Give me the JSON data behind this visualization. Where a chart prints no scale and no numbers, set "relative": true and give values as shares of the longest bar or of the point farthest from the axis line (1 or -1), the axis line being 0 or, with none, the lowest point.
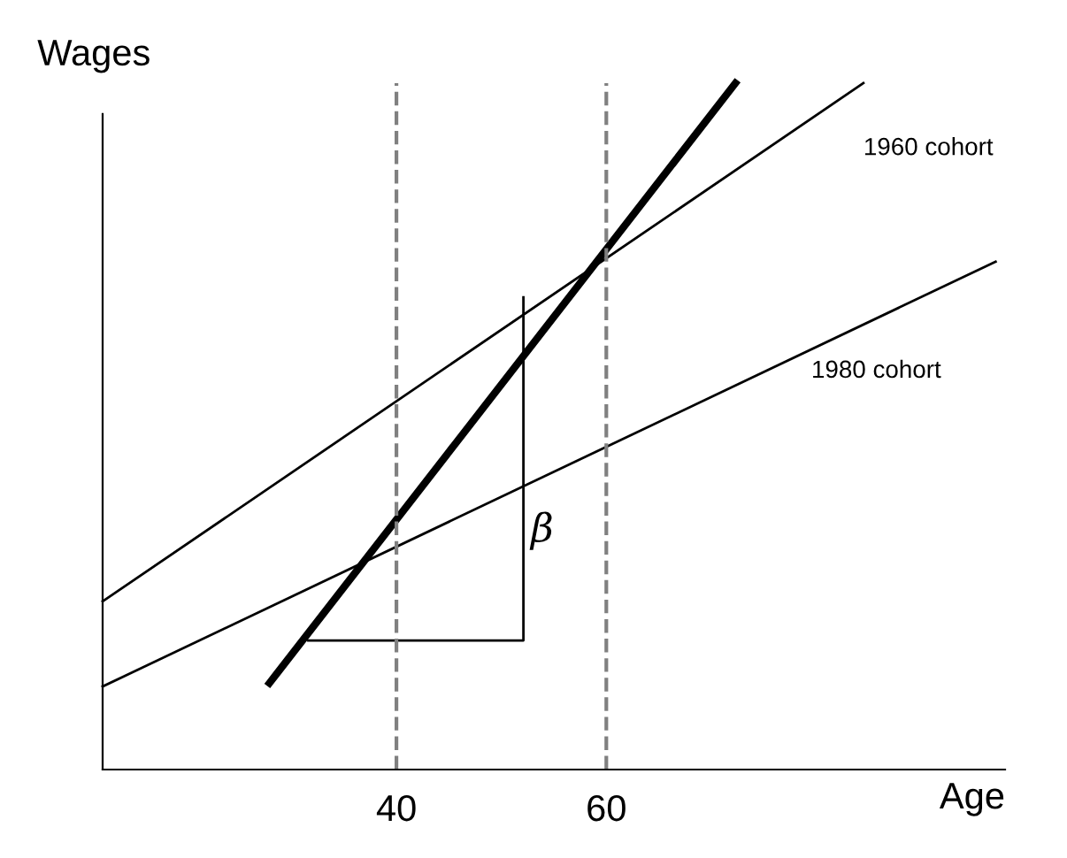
{
  "chart_data": {
    "type": "line",
    "relative": true,
    "xlabel": "Age",
    "ylabel": "Wages",
    "xlim": [
      12,
      98
    ],
    "xticks": [
      40,
      60
    ],
    "grid": false,
    "legend": false,
    "marker": "none",
    "line_style": "solid",
    "series": [
      {
        "name": "1960 cohort",
        "color": "#000000",
        "x": [
          12,
          84.5
        ],
        "values": [
          0.245,
          1.0
        ]
      },
      {
        "name": "1980 cohort",
        "color": "#000000",
        "x": [
          12,
          97.1
        ],
        "values": [
          0.121,
          0.74
        ]
      },
      {
        "color": "#000000",
        "x": [
          27.9,
          72.3
        ],
        "values": [
          0.126,
          1.0
        ]
      },
      {
        "color": "#000000",
        "x": [
          31.6,
          52.1,
          52.1
        ],
        "values": [
          0.188,
          0.188,
          0.688
        ]
      }
    ],
    "ref_lines": [
      {
        "axis": "x",
        "value": 40,
        "color": "#808080",
        "line_style": "dashed"
      },
      {
        "axis": "x",
        "value": 60,
        "color": "#808080",
        "line_style": "dashed"
      }
    ],
    "annotations": [
      "β"
    ]
  }
}
